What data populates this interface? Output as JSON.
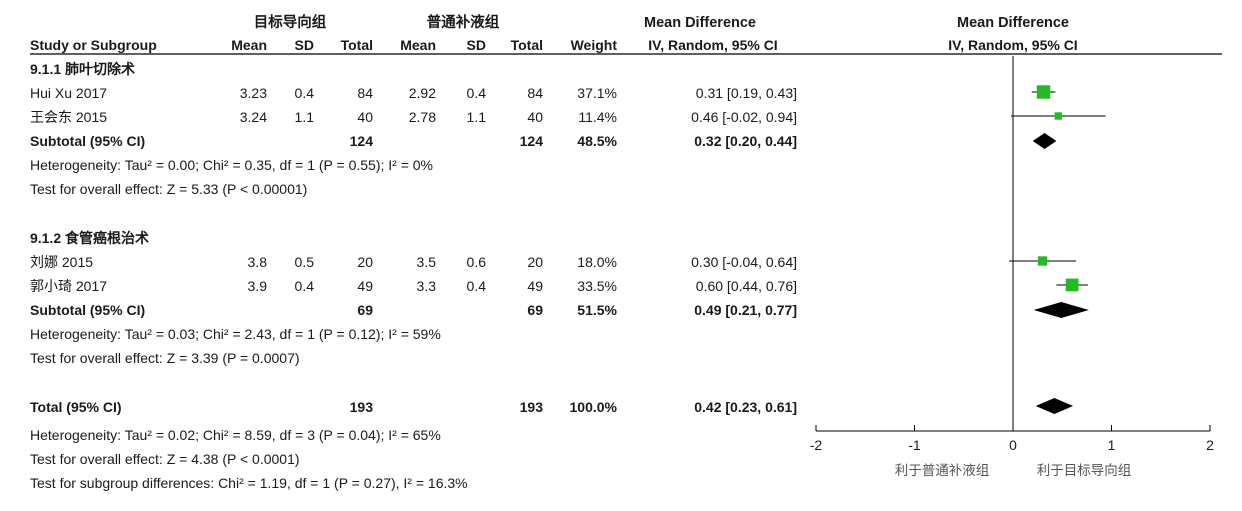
{
  "header": {
    "exp_group": "目标导向组",
    "ctl_group": "普通补液组",
    "md_title": "Mean Difference",
    "md_sub": "IV, Random, 95% CI",
    "plot_title": "Mean Difference",
    "plot_sub": "IV, Random, 95% CI",
    "col_study": "Study or Subgroup",
    "col_mean": "Mean",
    "col_sd": "SD",
    "col_total": "Total",
    "col_weight": "Weight"
  },
  "groups": [
    {
      "label": "9.1.1 肺叶切除术",
      "studies": [
        {
          "name": "Hui Xu 2017",
          "m1": "3.23",
          "sd1": "0.4",
          "n1": "84",
          "m2": "2.92",
          "sd2": "0.4",
          "n2": "84",
          "weight": "37.1%",
          "ci_text": "0.31 [0.19, 0.43]"
        },
        {
          "name": "王会东 2015",
          "m1": "3.24",
          "sd1": "1.1",
          "n1": "40",
          "m2": "2.78",
          "sd2": "1.1",
          "n2": "40",
          "weight": "11.4%",
          "ci_text": "0.46 [-0.02, 0.94]"
        }
      ],
      "subtotal": {
        "label": "Subtotal (95% CI)",
        "n1": "124",
        "n2": "124",
        "weight": "48.5%",
        "ci_text": "0.32 [0.20, 0.44]"
      },
      "heterogeneity": "Heterogeneity: Tau² = 0.00; Chi² = 0.35, df = 1 (P = 0.55); I² = 0%",
      "overall": "Test for overall effect: Z = 5.33 (P < 0.00001)"
    },
    {
      "label": "9.1.2 食管癌根治术",
      "studies": [
        {
          "name": "刘娜 2015",
          "m1": "3.8",
          "sd1": "0.5",
          "n1": "20",
          "m2": "3.5",
          "sd2": "0.6",
          "n2": "20",
          "weight": "18.0%",
          "ci_text": "0.30 [-0.04, 0.64]"
        },
        {
          "name": "郭小琦 2017",
          "m1": "3.9",
          "sd1": "0.4",
          "n1": "49",
          "m2": "3.3",
          "sd2": "0.4",
          "n2": "49",
          "weight": "33.5%",
          "ci_text": "0.60 [0.44, 0.76]"
        }
      ],
      "subtotal": {
        "label": "Subtotal (95% CI)",
        "n1": "69",
        "n2": "69",
        "weight": "51.5%",
        "ci_text": "0.49 [0.21, 0.77]"
      },
      "heterogeneity": "Heterogeneity: Tau² = 0.03; Chi² = 2.43, df = 1 (P = 0.12); I² = 59%",
      "overall": "Test for overall effect: Z = 3.39 (P = 0.0007)"
    }
  ],
  "total": {
    "label": "Total (95% CI)",
    "n1": "193",
    "n2": "193",
    "weight": "100.0%",
    "ci_text": "0.42 [0.23, 0.61]",
    "heterogeneity": "Heterogeneity: Tau² = 0.02; Chi² = 8.59, df = 3 (P = 0.04); I² = 65%",
    "overall": "Test for overall effect: Z = 4.38 (P < 0.0001)",
    "subgroup_diff": "Test for subgroup differences: Chi² = 1.19, df = 1 (P = 0.27), I² = 16.3%"
  },
  "axis": {
    "footer_left": "利于普通补液组",
    "footer_right": "利于目标导向组"
  },
  "colors": {
    "square": "#22bb22",
    "diamond": "#000000",
    "line": "#000000"
  },
  "chart_data": {
    "type": "forest",
    "xlim": [
      -2,
      2
    ],
    "xticks": [
      -2,
      -1,
      0,
      1,
      2
    ],
    "null_line": 0,
    "studies": [
      {
        "name": "Hui Xu 2017",
        "estimate": 0.31,
        "lower": 0.19,
        "upper": 0.43,
        "weight": 37.1
      },
      {
        "name": "王会东 2015",
        "estimate": 0.46,
        "lower": -0.02,
        "upper": 0.94,
        "weight": 11.4
      },
      {
        "name": "刘娜 2015",
        "estimate": 0.3,
        "lower": -0.04,
        "upper": 0.64,
        "weight": 18.0
      },
      {
        "name": "郭小琦 2017",
        "estimate": 0.6,
        "lower": 0.44,
        "upper": 0.76,
        "weight": 33.5
      }
    ],
    "subtotals": [
      {
        "name": "Subtotal 9.1.1",
        "estimate": 0.32,
        "lower": 0.2,
        "upper": 0.44
      },
      {
        "name": "Subtotal 9.1.2",
        "estimate": 0.49,
        "lower": 0.21,
        "upper": 0.77
      }
    ],
    "total": {
      "name": "Total",
      "estimate": 0.42,
      "lower": 0.23,
      "upper": 0.61
    }
  }
}
